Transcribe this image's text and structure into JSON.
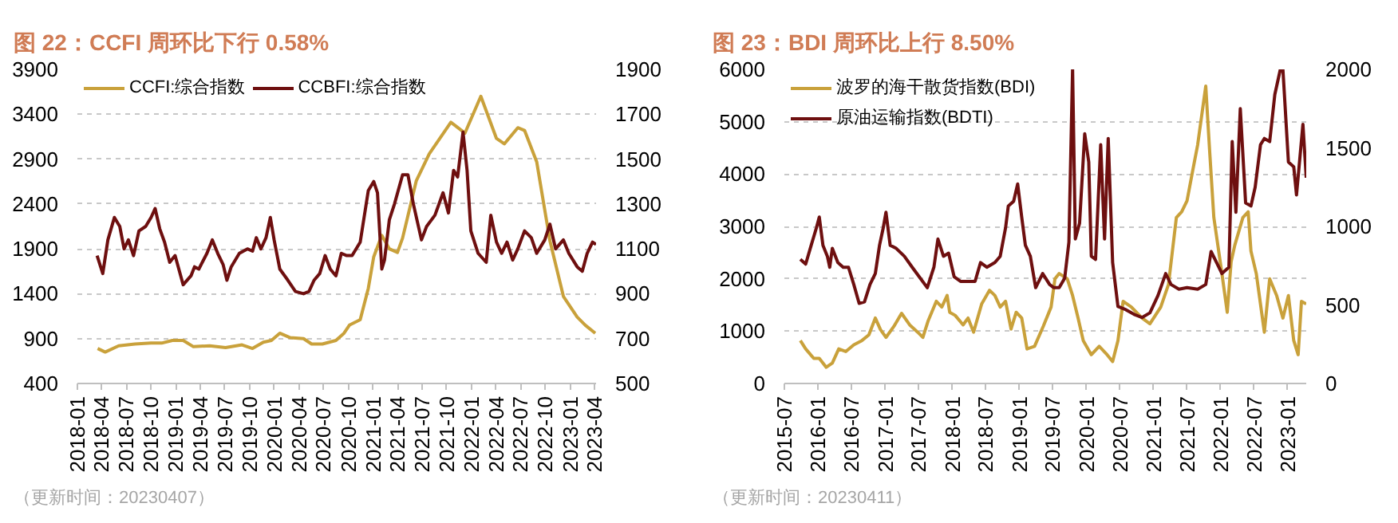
{
  "chart_data": [
    {
      "type": "line",
      "title": "图 22：CCFI 周环比下行 0.58%",
      "annotations": [
        "（更新时间：20230407）"
      ],
      "xlim": [
        "2018-01-01",
        "2023-04-07"
      ],
      "xticks": [
        "2018-01",
        "2018-04",
        "2018-07",
        "2018-10",
        "2019-01",
        "2019-04",
        "2019-07",
        "2019-10",
        "2020-01",
        "2020-04",
        "2020-07",
        "2020-10",
        "2021-01",
        "2021-04",
        "2021-07",
        "2021-10",
        "2022-01",
        "2022-04",
        "2022-07",
        "2022-10",
        "2023-01",
        "2023-04"
      ],
      "ylim": [
        400,
        3900
      ],
      "yticks": [
        400,
        900,
        1400,
        1900,
        2400,
        2900,
        3400,
        3900
      ],
      "y2lim": [
        500,
        1900
      ],
      "y2ticks": [
        500,
        700,
        900,
        1100,
        1300,
        1500,
        1700,
        1900
      ],
      "grid": "y",
      "legend": "top left",
      "series": [
        {
          "name": "CCFI:综合指数",
          "color": "#C9A13B",
          "x": [
            "2018-03-17",
            "2018-04-14",
            "2018-06-03",
            "2018-08-02",
            "2018-10-01",
            "2018-11-09",
            "2018-12-19",
            "2019-01-28",
            "2019-03-07",
            "2019-05-06",
            "2019-07-04",
            "2019-09-03",
            "2019-10-12",
            "2019-11-21",
            "2019-12-21",
            "2020-01-21",
            "2020-02-29",
            "2020-04-18",
            "2020-05-18",
            "2020-06-27",
            "2020-08-16",
            "2020-09-15",
            "2020-10-05",
            "2020-11-14",
            "2020-12-14",
            "2021-01-03",
            "2021-02-02",
            "2021-03-02",
            "2021-04-01",
            "2021-04-20",
            "2021-06-10",
            "2021-07-28",
            "2021-10-16",
            "2021-12-07",
            "2022-02-04",
            "2022-04-03",
            "2022-05-02",
            "2022-06-21",
            "2022-07-16",
            "2022-08-30",
            "2022-10-18",
            "2022-12-07",
            "2023-01-27",
            "2023-02-26",
            "2023-04-04"
          ],
          "values": [
            790,
            750,
            820,
            840,
            850,
            850,
            880,
            880,
            810,
            820,
            800,
            830,
            790,
            860,
            880,
            960,
            910,
            900,
            840,
            840,
            880,
            960,
            1050,
            1110,
            1460,
            1810,
            2050,
            1900,
            1860,
            2020,
            2660,
            2960,
            3310,
            3190,
            3600,
            3130,
            3070,
            3250,
            3220,
            2870,
            1990,
            1370,
            1140,
            1050,
            960
          ]
        },
        {
          "name": "CCBFI:综合指数",
          "color": "#6E0F0F",
          "axis": "y2",
          "x": [
            "2018-03-15",
            "2018-04-05",
            "2018-04-24",
            "2018-05-18",
            "2018-06-07",
            "2018-06-23",
            "2018-07-09",
            "2018-07-28",
            "2018-08-17",
            "2018-09-11",
            "2018-10-01",
            "2018-10-16",
            "2018-11-02",
            "2018-11-20",
            "2018-12-09",
            "2018-12-29",
            "2019-01-28",
            "2019-02-26",
            "2019-03-11",
            "2019-03-27",
            "2019-04-26",
            "2019-05-16",
            "2019-06-05",
            "2019-06-25",
            "2019-07-09",
            "2019-07-25",
            "2019-08-24",
            "2019-09-23",
            "2019-10-12",
            "2019-10-26",
            "2019-11-12",
            "2019-12-01",
            "2019-12-17",
            "2019-12-31",
            "2020-01-21",
            "2020-02-20",
            "2020-03-19",
            "2020-04-18",
            "2020-05-08",
            "2020-05-27",
            "2020-06-17",
            "2020-07-07",
            "2020-07-26",
            "2020-08-16",
            "2020-09-05",
            "2020-09-25",
            "2020-10-15",
            "2020-11-14",
            "2020-12-14",
            "2021-01-03",
            "2021-01-17",
            "2021-02-02",
            "2021-02-12",
            "2021-03-02",
            "2021-03-21",
            "2021-04-20",
            "2021-05-10",
            "2021-05-30",
            "2021-06-29",
            "2021-07-18",
            "2021-08-18",
            "2021-09-17",
            "2021-10-07",
            "2021-10-26",
            "2021-11-10",
            "2021-11-30",
            "2021-12-15",
            "2021-12-29",
            "2022-01-25",
            "2022-02-24",
            "2022-03-13",
            "2022-04-03",
            "2022-04-22",
            "2022-05-12",
            "2022-06-02",
            "2022-06-21",
            "2022-07-16",
            "2022-08-10",
            "2022-08-30",
            "2022-09-29",
            "2022-10-18",
            "2022-11-08",
            "2022-12-07",
            "2022-12-27",
            "2023-01-27",
            "2023-02-15",
            "2023-03-05",
            "2023-03-25",
            "2023-04-07"
          ],
          "values": [
            1070,
            990,
            1140,
            1240,
            1200,
            1100,
            1140,
            1070,
            1180,
            1200,
            1240,
            1280,
            1190,
            1130,
            1040,
            1070,
            940,
            980,
            1020,
            1010,
            1080,
            1140,
            1080,
            1030,
            960,
            1020,
            1080,
            1100,
            1090,
            1150,
            1100,
            1150,
            1240,
            1140,
            1010,
            960,
            910,
            900,
            910,
            960,
            990,
            1070,
            1010,
            980,
            1080,
            1070,
            1070,
            1130,
            1360,
            1400,
            1350,
            1010,
            1050,
            1230,
            1300,
            1430,
            1430,
            1300,
            1140,
            1200,
            1250,
            1350,
            1260,
            1450,
            1420,
            1620,
            1450,
            1180,
            1080,
            1040,
            1250,
            1130,
            1080,
            1130,
            1050,
            1100,
            1180,
            1150,
            1080,
            1140,
            1210,
            1100,
            1140,
            1080,
            1020,
            1000,
            1080,
            1130,
            1120
          ]
        }
      ]
    },
    {
      "type": "line",
      "title": "图 23：BDI 周环比上行 8.50%",
      "annotations": [
        "（更新时间：20230411）"
      ],
      "xlim": [
        "2015-07-01",
        "2023-04-11"
      ],
      "xticks": [
        "2015-07",
        "2016-01",
        "2016-07",
        "2017-01",
        "2017-07",
        "2018-01",
        "2018-07",
        "2019-01",
        "2019-07",
        "2020-01",
        "2020-07",
        "2021-01",
        "2021-07",
        "2022-01",
        "2022-07",
        "2023-01"
      ],
      "ylim": [
        0,
        6000
      ],
      "yticks": [
        0,
        1000,
        2000,
        3000,
        4000,
        5000,
        6000
      ],
      "y2lim": [
        0,
        2000
      ],
      "y2ticks": [
        0,
        500,
        1000,
        1500,
        2000
      ],
      "grid": "y",
      "legend": "top left",
      "series": [
        {
          "name": "波罗的海干散货指数(BDI)",
          "color": "#C9A13B",
          "x": [
            "2015-09-26",
            "2015-10-25",
            "2015-12-08",
            "2016-01-07",
            "2016-02-14",
            "2016-03-18",
            "2016-04-22",
            "2016-05-30",
            "2016-07-13",
            "2016-08-26",
            "2016-10-03",
            "2016-11-07",
            "2016-12-05",
            "2017-01-04",
            "2017-02-16",
            "2017-03-30",
            "2017-05-13",
            "2017-06-26",
            "2017-07-24",
            "2017-08-22",
            "2017-10-05",
            "2017-11-04",
            "2017-12-03",
            "2017-12-17",
            "2018-01-16",
            "2018-02-28",
            "2018-03-27",
            "2018-04-26",
            "2018-06-09",
            "2018-07-22",
            "2018-08-20",
            "2018-09-18",
            "2018-10-17",
            "2018-11-16",
            "2018-12-14",
            "2019-01-13",
            "2019-02-11",
            "2019-03-24",
            "2019-05-10",
            "2019-06-22",
            "2019-07-13",
            "2019-08-05",
            "2019-09-18",
            "2019-10-17",
            "2019-11-16",
            "2019-12-14",
            "2020-01-27",
            "2020-03-10",
            "2020-04-22",
            "2020-05-22",
            "2020-06-20",
            "2020-07-18",
            "2020-09-01",
            "2020-10-29",
            "2020-12-11",
            "2021-02-08",
            "2021-03-22",
            "2021-05-04",
            "2021-06-02",
            "2021-07-01",
            "2021-07-30",
            "2021-08-28",
            "2021-10-11",
            "2021-11-01",
            "2021-11-24",
            "2022-01-07",
            "2022-02-05",
            "2022-02-26",
            "2022-03-18",
            "2022-05-01",
            "2022-05-30",
            "2022-06-14",
            "2022-07-13",
            "2022-08-26",
            "2022-09-24",
            "2022-11-01",
            "2022-12-05",
            "2023-01-04",
            "2023-02-02",
            "2023-02-26",
            "2023-03-16",
            "2023-04-11"
          ],
          "values": [
            820,
            660,
            480,
            480,
            310,
            390,
            660,
            610,
            740,
            820,
            930,
            1250,
            1030,
            880,
            1090,
            1340,
            1120,
            980,
            880,
            1200,
            1570,
            1460,
            1680,
            1360,
            1300,
            1120,
            1250,
            980,
            1520,
            1780,
            1680,
            1460,
            1570,
            1040,
            1360,
            1250,
            660,
            710,
            1090,
            1460,
            2000,
            2100,
            2000,
            1680,
            1250,
            820,
            550,
            710,
            550,
            420,
            820,
            1570,
            1460,
            1250,
            1140,
            1460,
            1890,
            3170,
            3280,
            3490,
            4030,
            4560,
            5680,
            4450,
            3170,
            2100,
            1360,
            2320,
            2640,
            3170,
            3280,
            2530,
            2100,
            980,
            2000,
            1680,
            1250,
            1680,
            820,
            550,
            1570,
            1520
          ]
        },
        {
          "name": "原油运输指数(BDTI)",
          "color": "#6E0F0F",
          "axis": "y2",
          "x": [
            "2015-09-26",
            "2015-10-25",
            "2015-11-24",
            "2015-12-22",
            "2016-01-07",
            "2016-01-27",
            "2016-02-20",
            "2016-03-04",
            "2016-03-18",
            "2016-04-17",
            "2016-05-16",
            "2016-06-14",
            "2016-07-13",
            "2016-08-11",
            "2016-09-09",
            "2016-10-09",
            "2016-11-07",
            "2016-11-30",
            "2016-12-20",
            "2017-01-04",
            "2017-01-27",
            "2017-03-01",
            "2017-04-14",
            "2017-05-27",
            "2017-07-10",
            "2017-08-17",
            "2017-09-22",
            "2017-10-14",
            "2017-11-13",
            "2017-12-11",
            "2018-01-10",
            "2018-02-14",
            "2018-03-27",
            "2018-05-04",
            "2018-06-03",
            "2018-07-07",
            "2018-08-20",
            "2018-09-18",
            "2018-10-17",
            "2018-11-01",
            "2018-11-30",
            "2018-12-22",
            "2019-01-13",
            "2019-02-02",
            "2019-03-01",
            "2019-03-30",
            "2019-05-07",
            "2019-06-14",
            "2019-07-07",
            "2019-08-05",
            "2019-09-04",
            "2019-09-27",
            "2019-10-17",
            "2019-11-01",
            "2019-11-24",
            "2019-12-22",
            "2020-01-13",
            "2020-01-27",
            "2020-02-19",
            "2020-03-18",
            "2020-04-08",
            "2020-04-28",
            "2020-05-22",
            "2020-06-20",
            "2020-08-02",
            "2020-09-16",
            "2020-10-29",
            "2020-12-11",
            "2021-01-24",
            "2021-03-07",
            "2021-04-05",
            "2021-05-18",
            "2021-07-01",
            "2021-08-28",
            "2021-10-11",
            "2021-11-09",
            "2021-12-09",
            "2022-01-07",
            "2022-02-14",
            "2022-03-04",
            "2022-03-24",
            "2022-04-17",
            "2022-05-16",
            "2022-06-14",
            "2022-07-07",
            "2022-08-05",
            "2022-08-26",
            "2022-09-24",
            "2022-10-22",
            "2022-11-21",
            "2022-12-05",
            "2023-01-04",
            "2023-02-02",
            "2023-02-17",
            "2023-03-24",
            "2023-04-11"
          ],
          "values": [
            790,
            760,
            880,
            990,
            1060,
            880,
            810,
            740,
            860,
            770,
            740,
            740,
            630,
            510,
            520,
            630,
            700,
            880,
            990,
            1090,
            880,
            860,
            810,
            740,
            670,
            610,
            740,
            920,
            810,
            830,
            680,
            650,
            650,
            650,
            770,
            740,
            770,
            810,
            990,
            1130,
            1160,
            1270,
            1060,
            880,
            810,
            610,
            700,
            630,
            610,
            610,
            670,
            900,
            2000,
            920,
            1020,
            1590,
            1410,
            810,
            790,
            1520,
            920,
            1560,
            770,
            490,
            470,
            440,
            420,
            450,
            560,
            700,
            630,
            600,
            610,
            600,
            630,
            840,
            770,
            700,
            740,
            1540,
            1090,
            1750,
            1150,
            1130,
            1250,
            1520,
            1560,
            1540,
            1840,
            2000,
            2000,
            1410,
            1380,
            1200,
            1650,
            1310
          ]
        }
      ]
    }
  ]
}
